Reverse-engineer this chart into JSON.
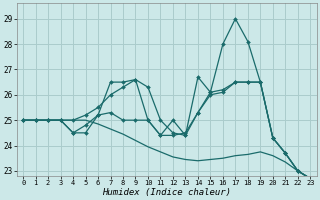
{
  "xlabel": "Humidex (Indice chaleur)",
  "background_color": "#cce8e8",
  "grid_color": "#aacccc",
  "line_color": "#1a6b6b",
  "xlim": [
    -0.5,
    23.5
  ],
  "ylim": [
    22.8,
    29.6
  ],
  "yticks": [
    23,
    24,
    25,
    26,
    27,
    28,
    29
  ],
  "xticks": [
    0,
    1,
    2,
    3,
    4,
    5,
    6,
    7,
    8,
    9,
    10,
    11,
    12,
    13,
    14,
    15,
    16,
    17,
    18,
    19,
    20,
    21,
    22,
    23
  ],
  "series": [
    {
      "y": [
        25.0,
        25.0,
        25.0,
        25.0,
        24.5,
        24.5,
        25.2,
        26.5,
        26.5,
        26.6,
        25.0,
        24.4,
        25.0,
        24.4,
        25.3,
        26.1,
        28.0,
        29.0,
        28.1,
        26.5,
        24.3,
        23.7,
        23.0,
        22.7
      ],
      "marker": true
    },
    {
      "y": [
        25.0,
        25.0,
        25.0,
        25.0,
        25.0,
        25.2,
        25.5,
        26.0,
        26.3,
        26.6,
        26.3,
        25.0,
        24.5,
        24.4,
        26.7,
        26.1,
        26.2,
        26.5,
        26.5,
        26.5,
        24.3,
        23.7,
        23.0,
        22.7
      ],
      "marker": true
    },
    {
      "y": [
        25.0,
        25.0,
        25.0,
        25.0,
        24.5,
        24.8,
        25.2,
        25.3,
        25.0,
        25.0,
        25.0,
        24.4,
        24.4,
        24.5,
        25.3,
        26.0,
        26.1,
        26.5,
        26.5,
        26.5,
        24.3,
        23.7,
        23.0,
        22.7
      ],
      "marker": true
    },
    {
      "y": [
        25.0,
        25.0,
        25.0,
        25.0,
        25.0,
        25.0,
        24.85,
        24.65,
        24.45,
        24.2,
        23.95,
        23.75,
        23.55,
        23.45,
        23.4,
        23.45,
        23.5,
        23.6,
        23.65,
        23.75,
        23.6,
        23.35,
        23.0,
        22.7
      ],
      "marker": false
    }
  ]
}
